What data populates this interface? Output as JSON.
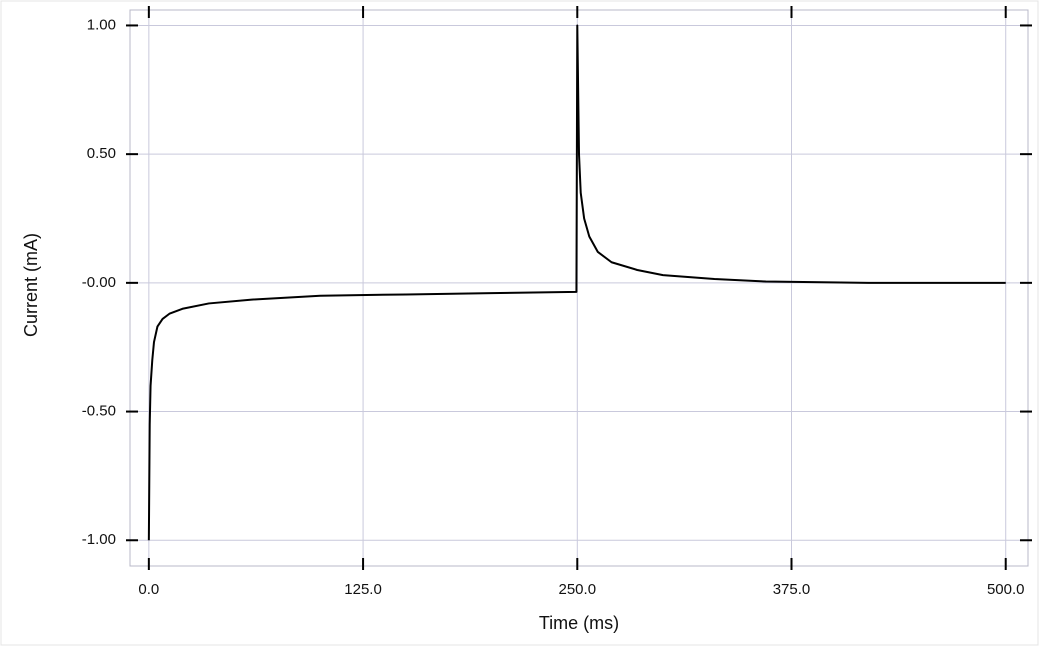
{
  "chart_data": {
    "type": "line",
    "x_label": "Time (ms)",
    "y_label": "Current (mA)",
    "x": [
      0,
      0.5,
      1,
      2,
      3,
      5,
      8,
      12,
      20,
      35,
      60,
      100,
      150,
      200,
      249.5,
      250,
      251,
      252,
      254,
      257,
      262,
      270,
      285,
      300,
      330,
      360,
      420,
      500
    ],
    "series": [
      {
        "color": "#000000",
        "values": [
          -1.0,
          -0.55,
          -0.4,
          -0.3,
          -0.23,
          -0.17,
          -0.14,
          -0.12,
          -0.1,
          -0.08,
          -0.065,
          -0.05,
          -0.045,
          -0.04,
          -0.035,
          1.0,
          0.5,
          0.35,
          0.25,
          0.18,
          0.12,
          0.08,
          0.05,
          0.03,
          0.015,
          0.005,
          0,
          0
        ]
      }
    ],
    "xlim": [
      -11,
      513
    ],
    "ylim": [
      -1.1,
      1.06
    ],
    "xticks": [
      {
        "value": 0,
        "label": "0.0"
      },
      {
        "value": 125,
        "label": "125.0"
      },
      {
        "value": 250,
        "label": "250.0"
      },
      {
        "value": 375,
        "label": "375.0"
      },
      {
        "value": 500,
        "label": "500.0"
      }
    ],
    "yticks": [
      {
        "value": 1,
        "label": "1.00"
      },
      {
        "value": 0.5,
        "label": "0.50"
      },
      {
        "value": 0,
        "label": "-0.00"
      },
      {
        "value": -0.5,
        "label": "-0.50"
      },
      {
        "value": -1,
        "label": "-1.00"
      }
    ],
    "grid": true
  }
}
